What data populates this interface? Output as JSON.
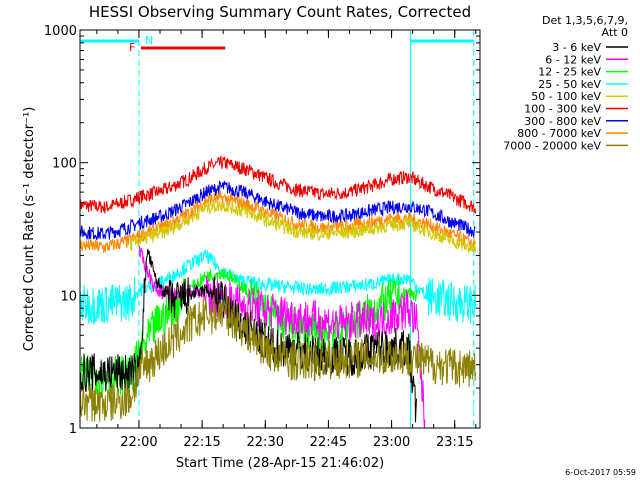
{
  "chart_data": {
    "type": "line",
    "title": "HESSI Observing Summary Count Rates, Corrected",
    "xlabel": "Start Time (28-Apr-15 21:46:02)",
    "ylabel": "Corrected Count Rate (s⁻¹ detector⁻¹)",
    "timestamp": "6-Oct-2017 05:59",
    "x_unit": "minutes after 21:46:02",
    "xlim": [
      0,
      95
    ],
    "ylim": [
      1,
      1000
    ],
    "yscale": "log",
    "x_ticks": [
      {
        "t": 14,
        "label": "22:00"
      },
      {
        "t": 29,
        "label": "22:15"
      },
      {
        "t": 44,
        "label": "22:30"
      },
      {
        "t": 59,
        "label": "22:45"
      },
      {
        "t": 74,
        "label": "23:00"
      },
      {
        "t": 89,
        "label": "23:15"
      }
    ],
    "y_ticks": [
      {
        "v": 1,
        "label": "1"
      },
      {
        "v": 10,
        "label": "10"
      },
      {
        "v": 100,
        "label": "100"
      },
      {
        "v": 1000,
        "label": "1000"
      }
    ],
    "legend_header": [
      "Det 1,3,5,6,7,9,",
      "Att 0"
    ],
    "legend": [
      {
        "name": "3 - 6 keV",
        "color": "#000000"
      },
      {
        "name": "6 - 12 keV",
        "color": "#ff00ff"
      },
      {
        "name": "12 - 25 keV",
        "color": "#00ff00"
      },
      {
        "name": "25 - 50 keV",
        "color": "#00ffff"
      },
      {
        "name": "50 - 100 keV",
        "color": "#d4c800"
      },
      {
        "name": "100 - 300 keV",
        "color": "#ee0000"
      },
      {
        "name": "300 - 800 keV",
        "color": "#0000ee"
      },
      {
        "name": "800 - 7000 keV",
        "color": "#ff8800"
      },
      {
        "name": "7000 - 20000 keV",
        "color": "#8b8000"
      }
    ],
    "markers": [
      {
        "label": "N",
        "color": "#00ffff"
      },
      {
        "label": "F",
        "color": "#ee0000"
      }
    ],
    "night_bars": [
      [
        0,
        14
      ],
      [
        78.5,
        93.5
      ]
    ],
    "flare_bar": [
      14.5,
      34.5
    ],
    "boundaries": [
      {
        "t": 14,
        "style": "dashed"
      },
      {
        "t": 78.5,
        "style": "solid"
      },
      {
        "t": 93.5,
        "style": "dashed"
      }
    ],
    "series": [
      {
        "name": "100 - 300 keV",
        "color": "#ee0000",
        "x": [
          0,
          6,
          12,
          14,
          20,
          26,
          30,
          34,
          40,
          46,
          52,
          58,
          64,
          70,
          74,
          78,
          82,
          88,
          94
        ],
        "y": [
          48,
          46,
          52,
          55,
          62,
          76,
          92,
          100,
          88,
          72,
          62,
          58,
          60,
          68,
          75,
          78,
          68,
          56,
          46
        ]
      },
      {
        "name": "300 - 800 keV",
        "color": "#0000ee",
        "x": [
          0,
          6,
          12,
          14,
          20,
          26,
          30,
          34,
          40,
          46,
          52,
          58,
          64,
          70,
          74,
          78,
          82,
          88,
          94
        ],
        "y": [
          30,
          29,
          33,
          35,
          40,
          50,
          60,
          66,
          58,
          48,
          42,
          39,
          40,
          44,
          46,
          47,
          44,
          36,
          30
        ]
      },
      {
        "name": "800 - 7000 keV",
        "color": "#ff8800",
        "x": [
          0,
          6,
          12,
          14,
          20,
          26,
          30,
          34,
          40,
          46,
          52,
          58,
          64,
          70,
          74,
          78,
          82,
          88,
          94
        ],
        "y": [
          24,
          23,
          26,
          28,
          33,
          42,
          52,
          54,
          48,
          40,
          34,
          32,
          33,
          36,
          38,
          38,
          35,
          29,
          24
        ]
      },
      {
        "name": "50 - 100 keV",
        "color": "#d4c800",
        "x": [
          12,
          14,
          20,
          26,
          30,
          34,
          40,
          46,
          52,
          58,
          64,
          70,
          74,
          78,
          82,
          88,
          94
        ],
        "y": [
          24,
          26,
          30,
          38,
          46,
          48,
          42,
          35,
          30,
          29,
          30,
          32,
          34,
          35,
          31,
          26,
          22
        ]
      },
      {
        "name": "25 - 50 keV",
        "color": "#00ffff",
        "x": [
          0,
          6,
          12,
          14,
          18,
          22,
          26,
          30,
          34,
          38,
          44,
          50,
          56,
          62,
          68,
          74,
          78,
          82,
          88,
          94
        ],
        "y": [
          8.5,
          8.6,
          9,
          11,
          12,
          14,
          17,
          20,
          15,
          13,
          12,
          11.5,
          11,
          11.5,
          12,
          13,
          13.5,
          10,
          9,
          8.5
        ]
      },
      {
        "name": "12 - 25 keV",
        "color": "#00ff00",
        "x": [
          0,
          12,
          14,
          18,
          22,
          26,
          30,
          34,
          38,
          42,
          46,
          50,
          56,
          62,
          66,
          70,
          74,
          78,
          80
        ],
        "y": [
          2.5,
          2.5,
          3.5,
          6,
          8,
          11,
          14,
          15,
          12,
          9,
          7,
          6,
          5,
          5.5,
          6.5,
          8,
          9.5,
          10.5,
          10
        ]
      },
      {
        "name": "6 - 12 keV",
        "color": "#ff00ff",
        "x": [
          14,
          18,
          22,
          26,
          30,
          34,
          38,
          42,
          46,
          50,
          56,
          62,
          66,
          70,
          74,
          78,
          80,
          82
        ],
        "y": [
          22,
          11,
          10,
          11,
          10,
          9.5,
          8.5,
          8,
          7.5,
          7,
          6.5,
          6,
          6.5,
          6,
          7,
          8,
          6,
          1
        ]
      },
      {
        "name": "3 - 6 keV",
        "color": "#000000",
        "x": [
          0,
          12,
          14,
          16,
          18,
          22,
          26,
          30,
          34,
          38,
          42,
          46,
          50,
          56,
          62,
          66,
          70,
          74,
          78,
          80
        ],
        "y": [
          2.6,
          2.6,
          2.6,
          22,
          13,
          9,
          10,
          11,
          9,
          6,
          5,
          4,
          4,
          3.5,
          3.5,
          3.5,
          4,
          4,
          4,
          1.2
        ]
      },
      {
        "name": "7000 - 20000 keV",
        "color": "#8b8000",
        "x": [
          0,
          6,
          12,
          14,
          18,
          22,
          26,
          30,
          34,
          38,
          42,
          46,
          50,
          56,
          62,
          66,
          70,
          74,
          78,
          82,
          88,
          94
        ],
        "y": [
          1.6,
          1.5,
          1.7,
          2.6,
          3.5,
          4.5,
          6,
          7,
          7.5,
          6,
          4.5,
          3.6,
          3.2,
          3.2,
          3.3,
          3.4,
          3.5,
          3.5,
          3.5,
          3.1,
          2.9,
          2.8
        ]
      }
    ]
  }
}
